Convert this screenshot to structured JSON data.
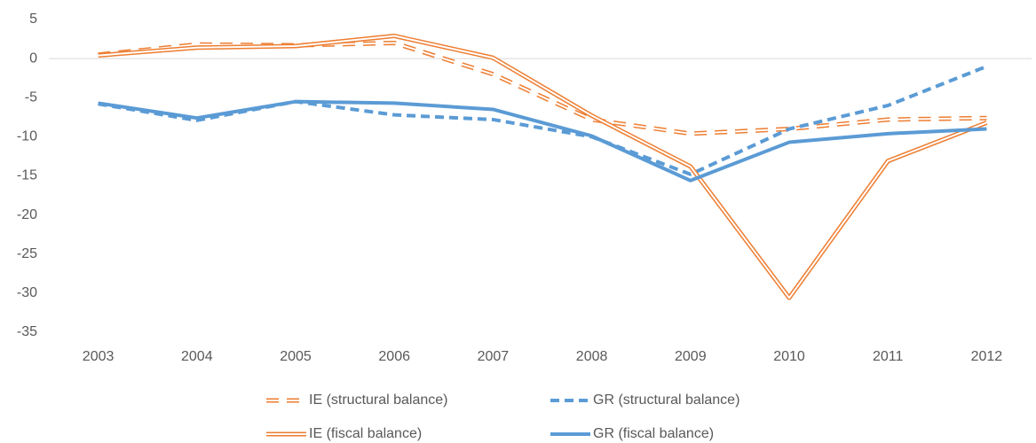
{
  "chart_data": {
    "type": "line",
    "categories": [
      "2003",
      "2004",
      "2005",
      "2006",
      "2007",
      "2008",
      "2009",
      "2010",
      "2011",
      "2012"
    ],
    "series": [
      {
        "name": "IE (structural balance)",
        "color": "#ed7d31",
        "dashed": true,
        "double": true,
        "values": [
          0.5,
          1.8,
          1.7,
          2.0,
          -2.0,
          -7.8,
          -9.6,
          -9.0,
          -7.8,
          -7.6
        ]
      },
      {
        "name": "GR (structural balance)",
        "color": "#5b9bd5",
        "dashed": true,
        "double": false,
        "values": [
          -5.8,
          -7.9,
          -5.5,
          -7.2,
          -7.8,
          -10.0,
          -14.8,
          -9.0,
          -6.0,
          -1.0
        ]
      },
      {
        "name": "IE (fiscal balance)",
        "color": "#ed7d31",
        "dashed": false,
        "double": true,
        "values": [
          0.4,
          1.4,
          1.6,
          2.9,
          0.1,
          -7.3,
          -13.8,
          -30.6,
          -13.1,
          -8.2
        ]
      },
      {
        "name": "GR (fiscal balance)",
        "color": "#5b9bd5",
        "dashed": false,
        "double": false,
        "values": [
          -5.7,
          -7.6,
          -5.5,
          -5.7,
          -6.5,
          -9.9,
          -15.6,
          -10.7,
          -9.6,
          -9.0
        ]
      }
    ],
    "ylim": [
      -35,
      5
    ],
    "yticks": [
      5,
      0,
      -5,
      -10,
      -15,
      -20,
      -25,
      -30,
      -35
    ],
    "grid": false
  }
}
